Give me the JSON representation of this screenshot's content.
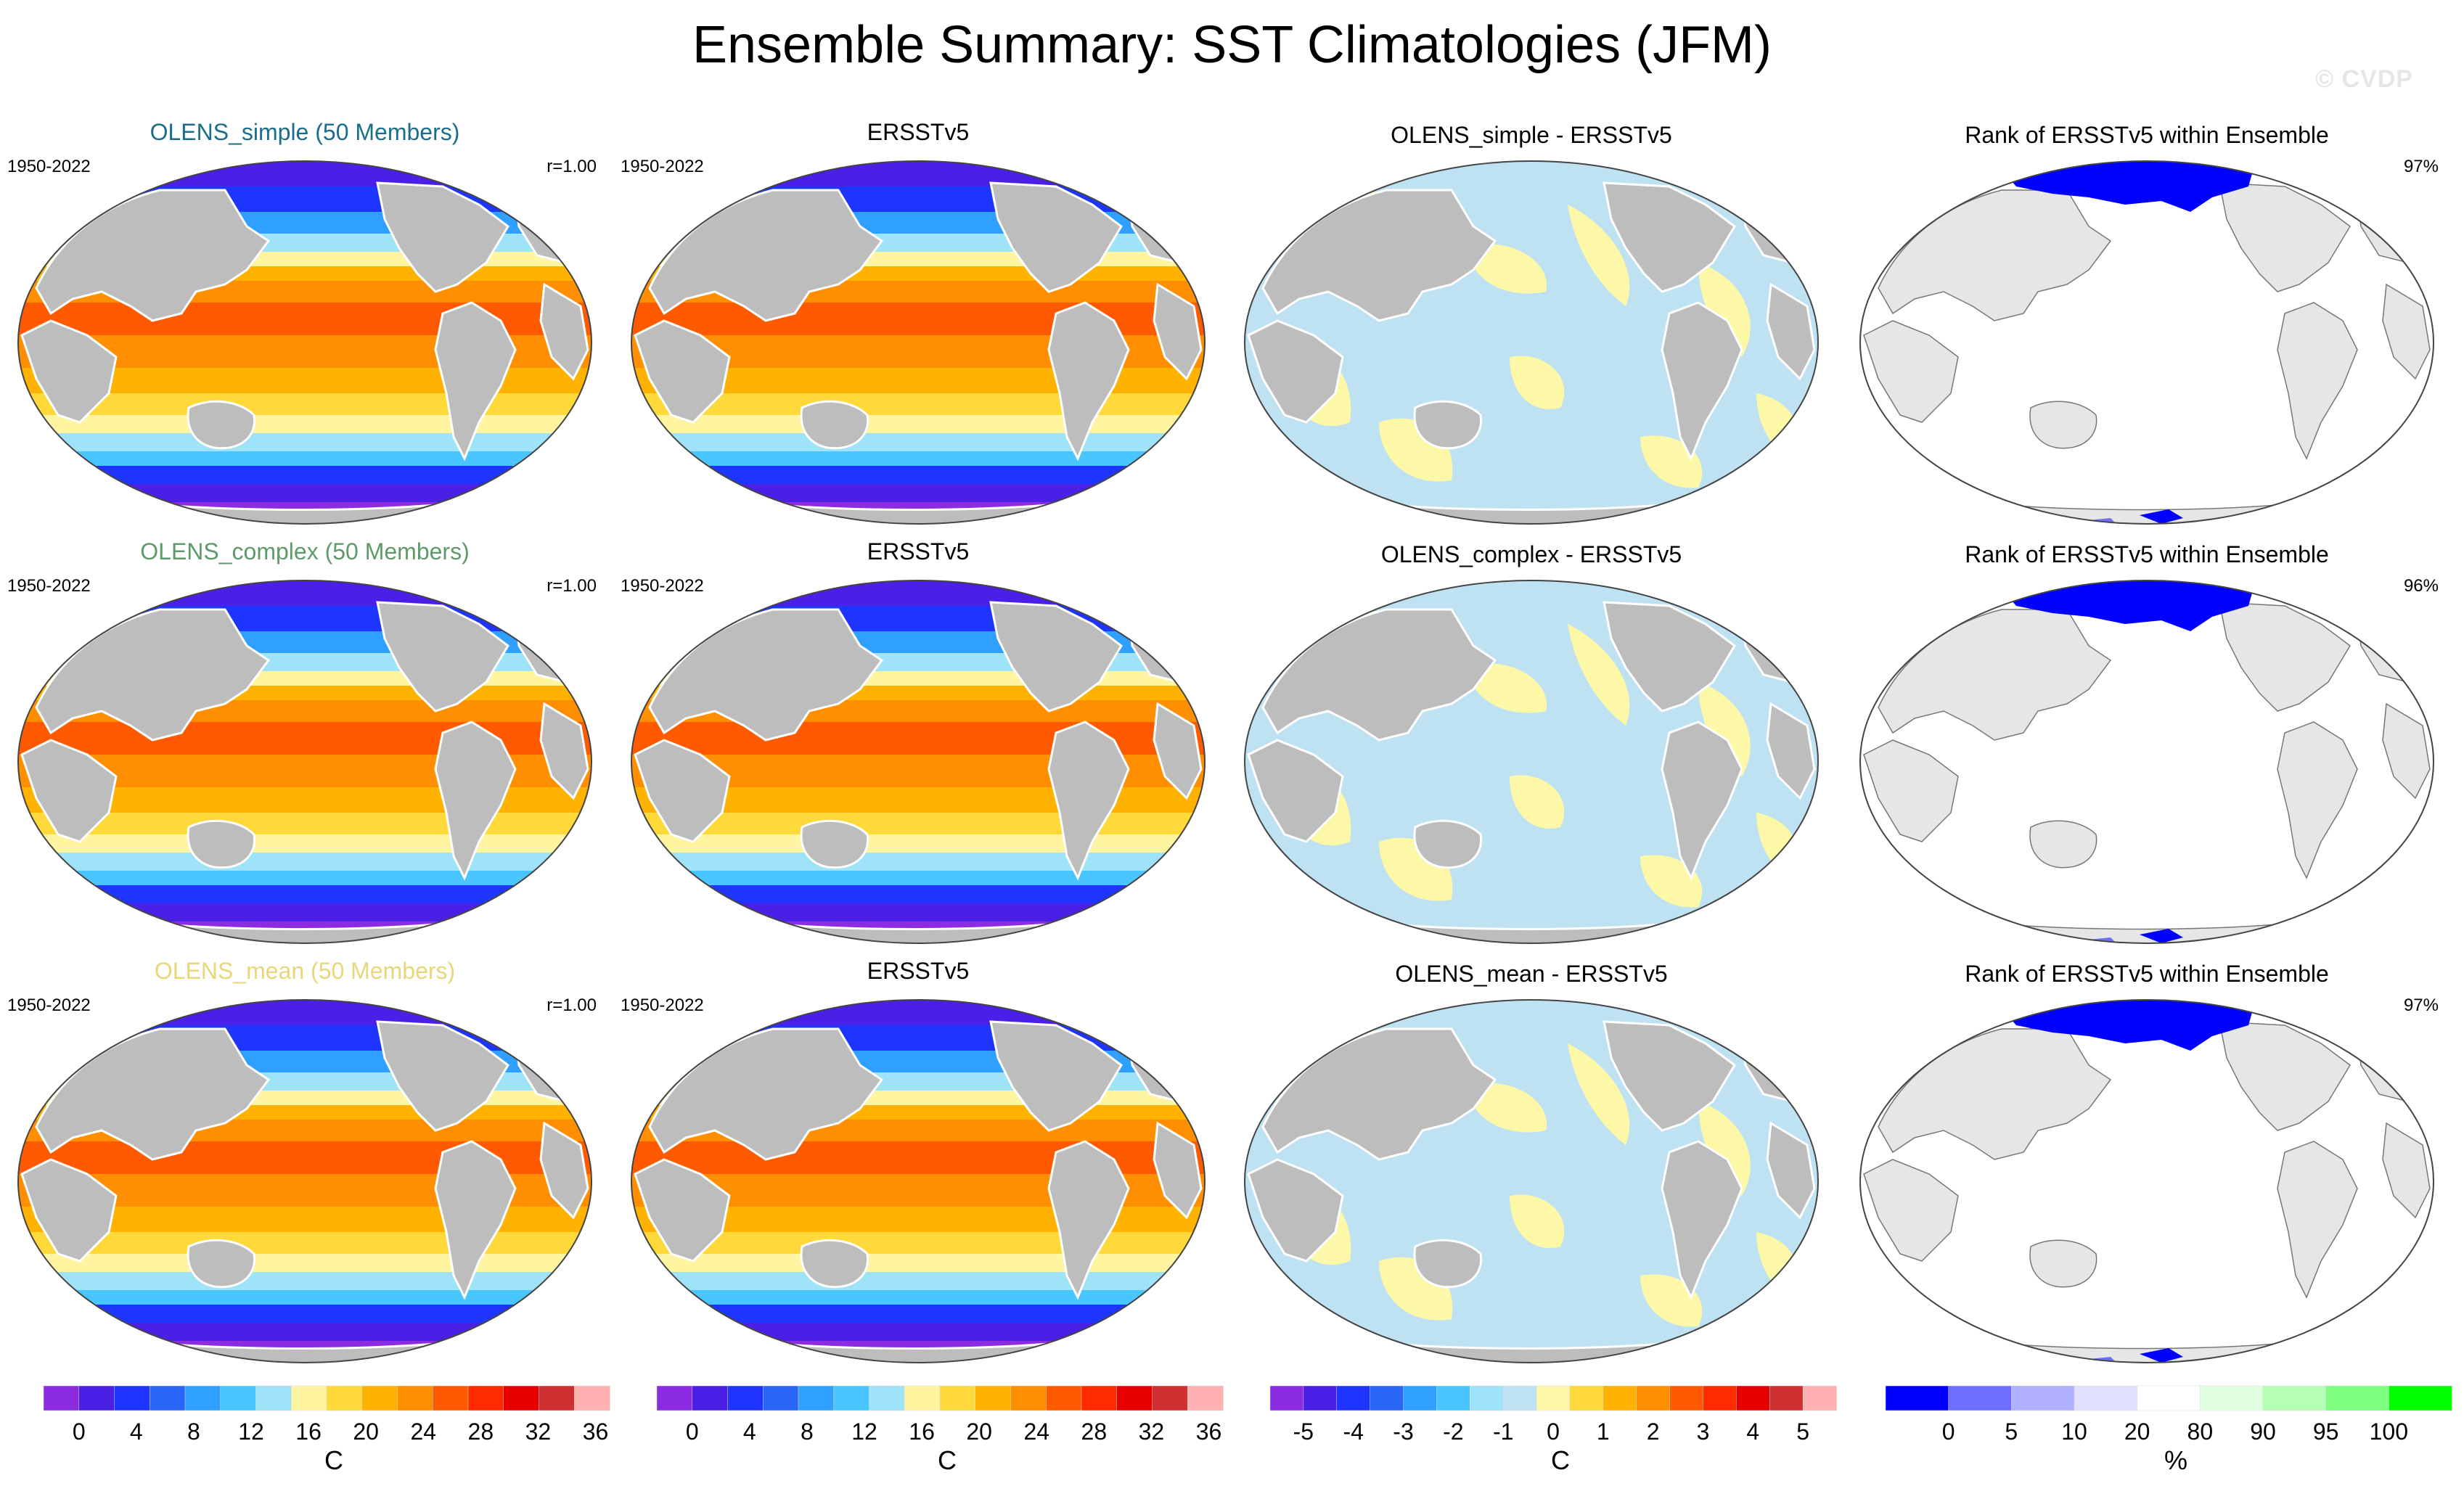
{
  "title": "Ensemble Summary: SST Climatologies (JFM)",
  "watermark": "© CVDP",
  "colors": {
    "ocean_mask_gray": "#bdbdbd",
    "light_land": "#e6e6e6",
    "diff_neg": "#bfe2f3",
    "diff_pos": "#fdf8a8",
    "rank_low": "#0000ff",
    "sst_scale": [
      "#8b2be2",
      "#4a1fe6",
      "#1e35ff",
      "#2a66f5",
      "#2fa0ff",
      "#49c6ff",
      "#9ee3f7",
      "#fff5a0",
      "#ffd93a",
      "#ffb300",
      "#ff8f00",
      "#ff5a00",
      "#ff2a00",
      "#e80000",
      "#cf2f2f",
      "#ffb0b0"
    ],
    "diff_scale": [
      "#8b2be2",
      "#4a1fe6",
      "#1e35ff",
      "#2a66f5",
      "#2fa0ff",
      "#49c6ff",
      "#9ee3f7",
      "#bfe2f3",
      "#fdf8a8",
      "#ffd93a",
      "#ffb300",
      "#ff8f00",
      "#ff5a00",
      "#ff2a00",
      "#e80000",
      "#cf2f2f",
      "#ffb0b0"
    ],
    "rank_scale": [
      "#0000ff",
      "#6f6fff",
      "#b0b0ff",
      "#e0e0ff",
      "#ffffff",
      "#e0ffe0",
      "#b4ffb4",
      "#7fff7f",
      "#00ff00"
    ]
  },
  "rows": [
    {
      "model": {
        "title": "OLENS_simple (50 Members)",
        "title_color": "#1a6e8a",
        "years": "1950-2022",
        "corr": "r=1.00"
      },
      "obs": {
        "title": "ERSSTv5",
        "years": "1950-2022"
      },
      "diff": {
        "title": "OLENS_simple - ERSSTv5"
      },
      "rank": {
        "title": "Rank of ERSSTv5 within Ensemble",
        "pct": "97%"
      }
    },
    {
      "model": {
        "title": "OLENS_complex (50 Members)",
        "title_color": "#5e9a6a",
        "years": "1950-2022",
        "corr": "r=1.00"
      },
      "obs": {
        "title": "ERSSTv5",
        "years": "1950-2022"
      },
      "diff": {
        "title": "OLENS_complex - ERSSTv5"
      },
      "rank": {
        "title": "Rank of ERSSTv5 within Ensemble",
        "pct": "96%"
      }
    },
    {
      "model": {
        "title": "OLENS_mean (50 Members)",
        "title_color": "#e8d77a",
        "years": "1950-2022",
        "corr": "r=1.00"
      },
      "obs": {
        "title": "ERSSTv5",
        "years": "1950-2022"
      },
      "diff": {
        "title": "OLENS_mean - ERSSTv5"
      },
      "rank": {
        "title": "Rank of ERSSTv5 within Ensemble",
        "pct": "97%"
      }
    }
  ],
  "colorbars": {
    "sst": {
      "ticks": [
        "0",
        "4",
        "8",
        "12",
        "16",
        "20",
        "24",
        "28",
        "32",
        "36"
      ],
      "unit": "C"
    },
    "diff": {
      "ticks": [
        "-5",
        "-4",
        "-3",
        "-2",
        "-1",
        "0",
        "1",
        "2",
        "3",
        "4",
        "5"
      ],
      "unit": "C"
    },
    "rank": {
      "ticks": [
        "0",
        "5",
        "10",
        "20",
        "80",
        "90",
        "95",
        "100"
      ],
      "unit": "%"
    }
  },
  "chart_data": [
    {
      "type": "heatmap",
      "title": "OLENS_simple (50 Members)",
      "variable": "SST climatology",
      "season": "JFM",
      "period": "1950-2022",
      "pattern_correlation": 1.0,
      "units": "C",
      "range": [
        0,
        36
      ]
    },
    {
      "type": "heatmap",
      "title": "ERSSTv5",
      "variable": "SST climatology",
      "season": "JFM",
      "period": "1950-2022",
      "units": "C",
      "range": [
        0,
        36
      ]
    },
    {
      "type": "heatmap",
      "title": "OLENS_simple - ERSSTv5",
      "units": "C",
      "range": [
        -5,
        5
      ]
    },
    {
      "type": "heatmap",
      "title": "Rank of ERSSTv5 within Ensemble",
      "units": "%",
      "summary": 97
    },
    {
      "type": "heatmap",
      "title": "OLENS_complex (50 Members)",
      "period": "1950-2022",
      "pattern_correlation": 1.0,
      "units": "C"
    },
    {
      "type": "heatmap",
      "title": "OLENS_complex - ERSSTv5",
      "units": "C"
    },
    {
      "type": "heatmap",
      "title": "Rank of ERSSTv5 within Ensemble",
      "units": "%",
      "summary": 96
    },
    {
      "type": "heatmap",
      "title": "OLENS_mean (50 Members)",
      "period": "1950-2022",
      "pattern_correlation": 1.0,
      "units": "C"
    },
    {
      "type": "heatmap",
      "title": "OLENS_mean - ERSSTv5",
      "units": "C"
    },
    {
      "type": "heatmap",
      "title": "Rank of ERSSTv5 within Ensemble",
      "units": "%",
      "summary": 97
    }
  ]
}
